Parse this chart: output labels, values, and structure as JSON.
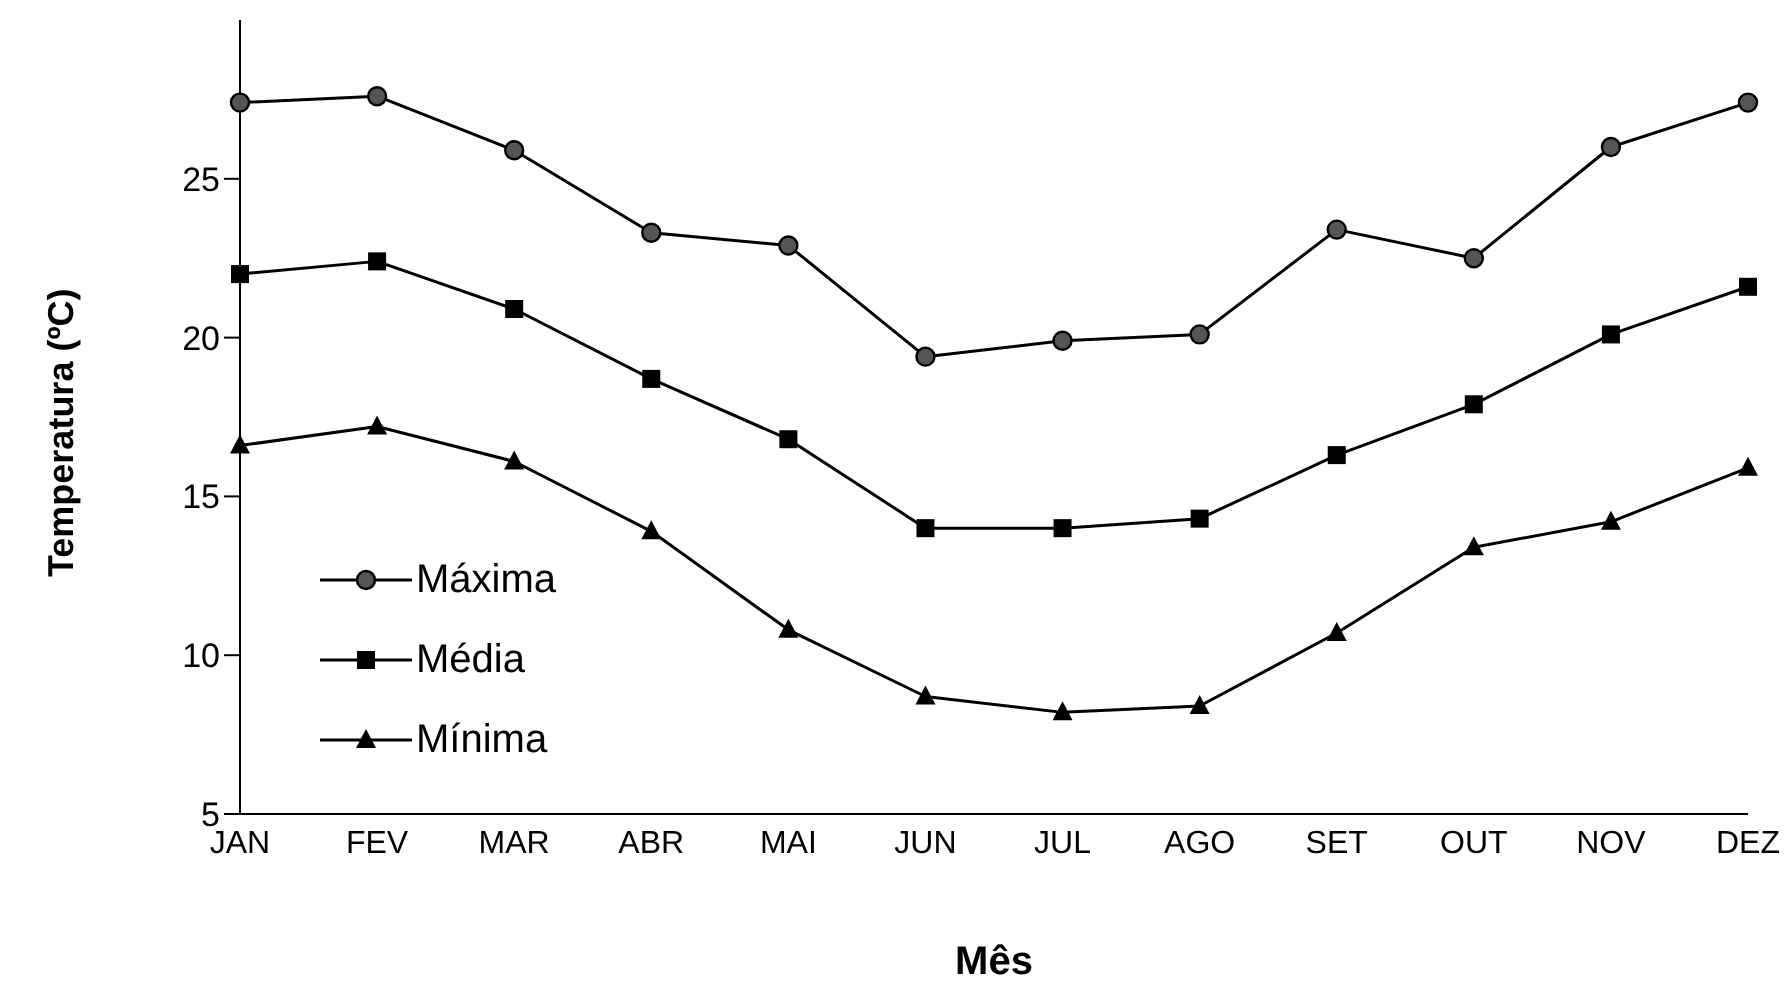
{
  "chart_data": {
    "type": "line",
    "xlabel": "Mês",
    "ylabel": "Temperatura (ºC)",
    "categories": [
      "JAN",
      "FEV",
      "MAR",
      "ABR",
      "MAI",
      "JUN",
      "JUL",
      "AGO",
      "SET",
      "OUT",
      "NOV",
      "DEZ"
    ],
    "ylim": [
      5,
      30
    ],
    "yticks": [
      5,
      10,
      15,
      20,
      25
    ],
    "grid": false,
    "legend": "left",
    "series": [
      {
        "name": "Máxima",
        "color": "#000000",
        "marker": "circle",
        "values": [
          27.4,
          27.6,
          25.9,
          23.3,
          22.9,
          19.4,
          19.9,
          20.1,
          23.4,
          22.5,
          26.0,
          27.4
        ]
      },
      {
        "name": "Média",
        "color": "#000000",
        "marker": "square",
        "values": [
          22.0,
          22.4,
          20.9,
          18.7,
          16.8,
          14.0,
          14.0,
          14.3,
          16.3,
          17.9,
          20.1,
          21.6
        ]
      },
      {
        "name": "Mínima",
        "color": "#000000",
        "marker": "triangle",
        "values": [
          16.6,
          17.2,
          16.1,
          13.9,
          10.8,
          8.7,
          8.2,
          8.4,
          10.7,
          13.4,
          14.2,
          15.9
        ]
      }
    ]
  }
}
